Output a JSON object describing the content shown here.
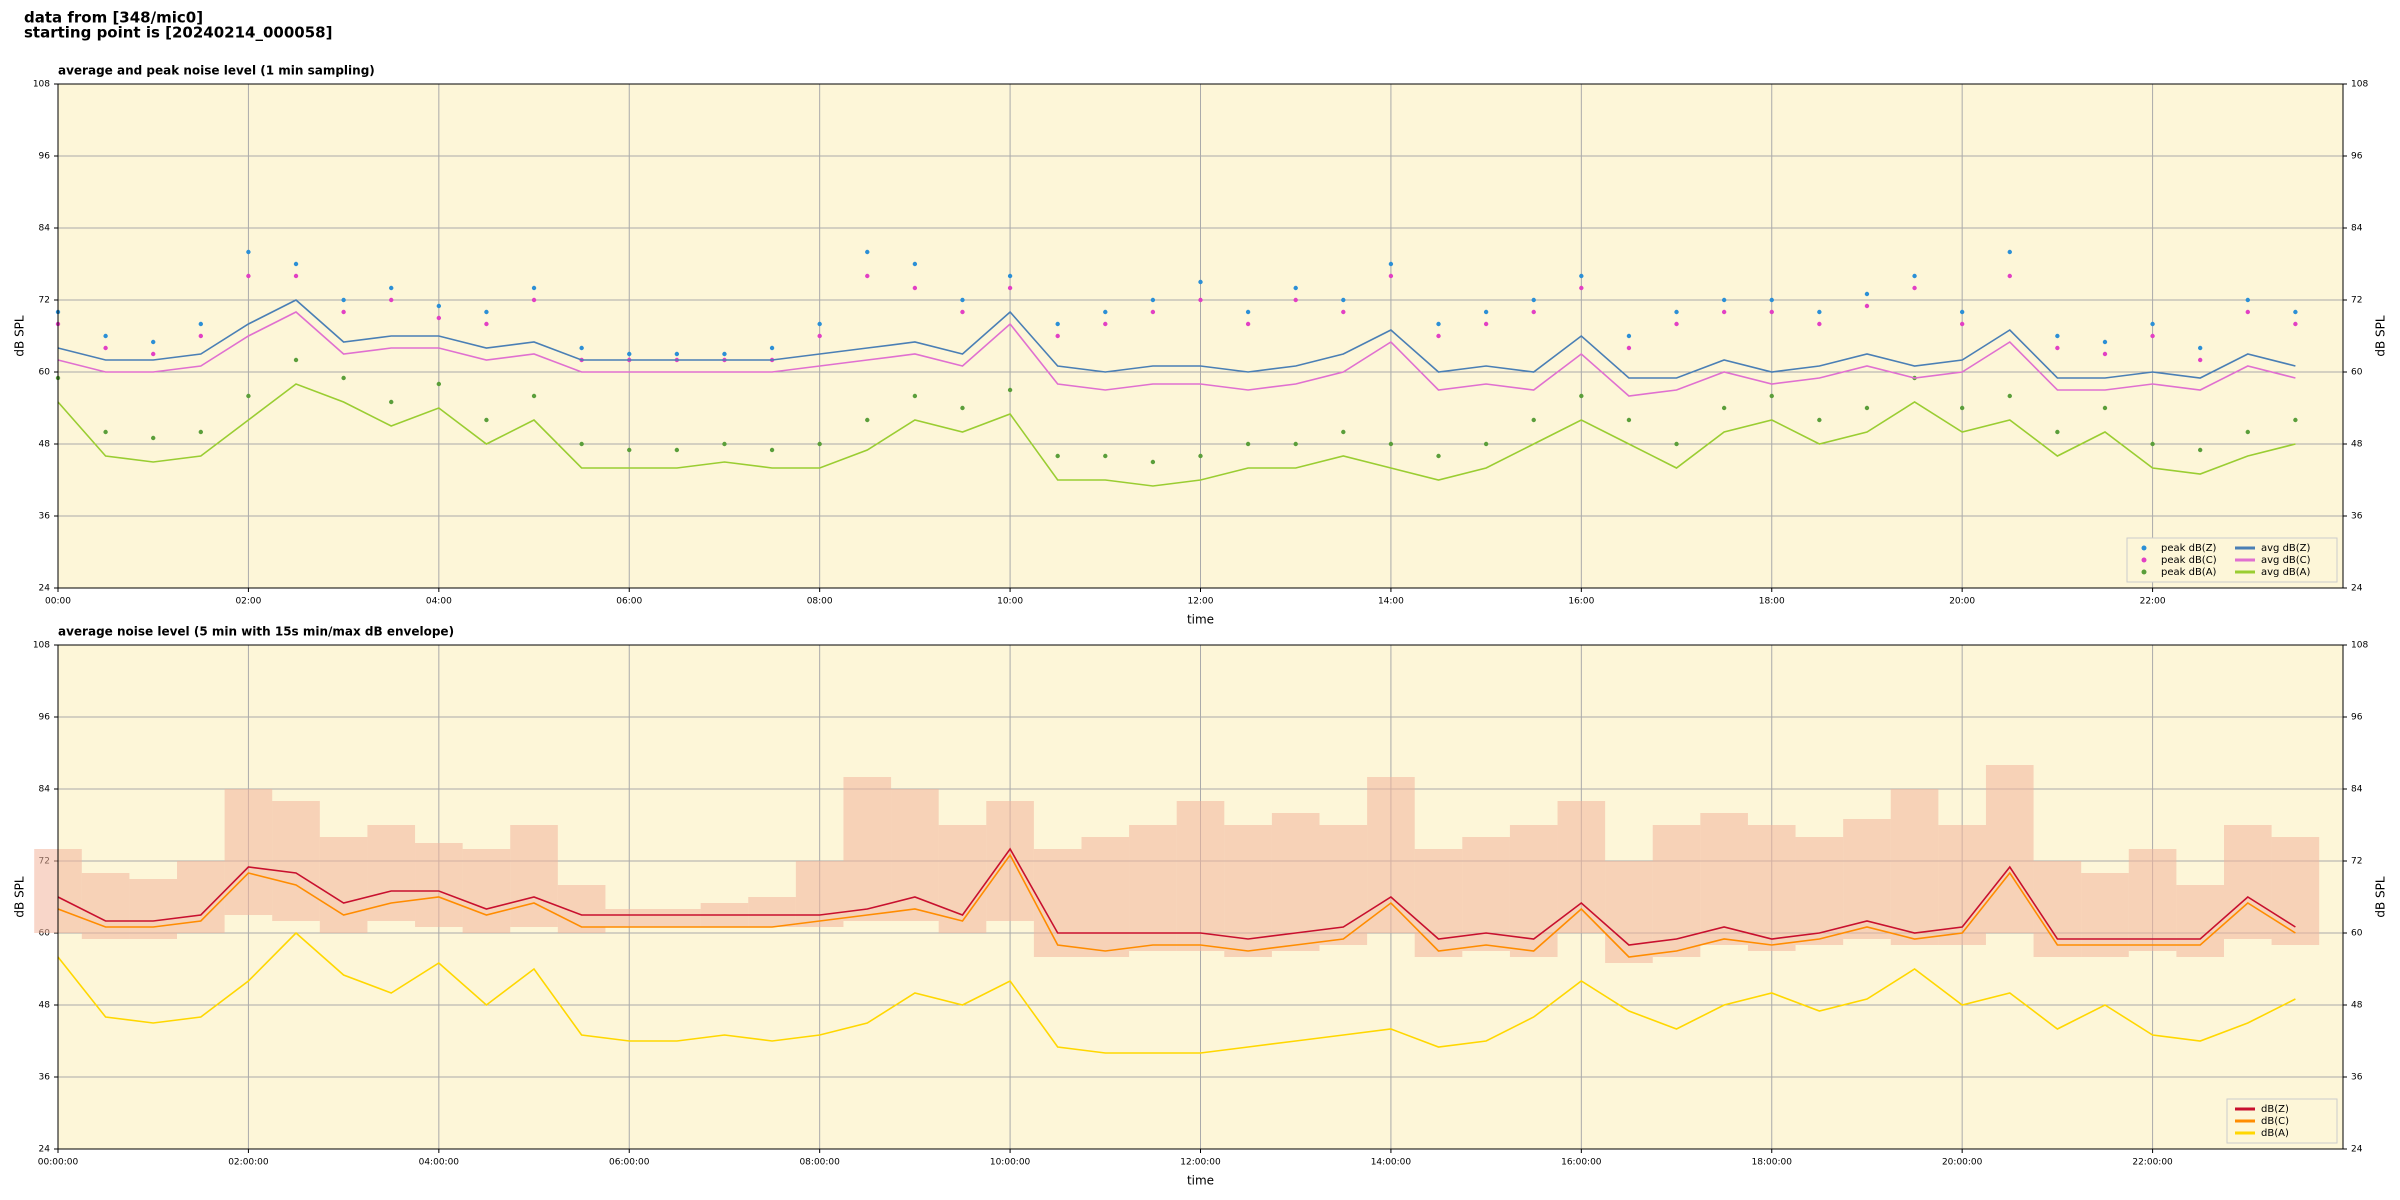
{
  "header": {
    "line1": "data from [348/mic0]",
    "line2": "starting point is [20240214_000058]"
  },
  "chart_data": [
    {
      "type": "line",
      "title": "average and peak noise level (1 min sampling)",
      "xlabel": "time",
      "ylabel": "dB SPL",
      "x": [
        0,
        0.5,
        1,
        1.5,
        2,
        2.5,
        3,
        3.5,
        4,
        4.5,
        5,
        5.5,
        6,
        6.5,
        7,
        7.5,
        8,
        8.5,
        9,
        9.5,
        10,
        10.5,
        11,
        11.5,
        12,
        12.5,
        13,
        13.5,
        14,
        14.5,
        15,
        15.5,
        16,
        16.5,
        17,
        17.5,
        18,
        18.5,
        19,
        19.5,
        20,
        20.5,
        21,
        21.5,
        22,
        22.5,
        23,
        23.5
      ],
      "xlim": [
        0,
        24
      ],
      "xticks": [
        {
          "value": 0,
          "label": "00:00"
        },
        {
          "value": 2,
          "label": "02:00"
        },
        {
          "value": 4,
          "label": "04:00"
        },
        {
          "value": 6,
          "label": "06:00"
        },
        {
          "value": 8,
          "label": "08:00"
        },
        {
          "value": 10,
          "label": "10:00"
        },
        {
          "value": 12,
          "label": "12:00"
        },
        {
          "value": 14,
          "label": "14:00"
        },
        {
          "value": 16,
          "label": "16:00"
        },
        {
          "value": 18,
          "label": "18:00"
        },
        {
          "value": 20,
          "label": "20:00"
        },
        {
          "value": 22,
          "label": "22:00"
        }
      ],
      "ylim": [
        24,
        108
      ],
      "yticks": [
        24,
        36,
        48,
        60,
        72,
        84,
        96,
        108
      ],
      "grid": true,
      "legend": "lower right",
      "legend_columns": 2,
      "series": [
        {
          "name": "peak dB(Z)",
          "kind": "points",
          "color": "#2b8fd6",
          "values": [
            70,
            66,
            65,
            68,
            80,
            78,
            72,
            74,
            71,
            70,
            74,
            64,
            63,
            63,
            63,
            64,
            68,
            80,
            78,
            72,
            76,
            68,
            70,
            72,
            75,
            70,
            74,
            72,
            78,
            68,
            70,
            72,
            76,
            66,
            70,
            72,
            72,
            70,
            73,
            76,
            70,
            80,
            66,
            65,
            68,
            64,
            72,
            70
          ]
        },
        {
          "name": "peak dB(C)",
          "kind": "points",
          "color": "#e23fc4",
          "values": [
            68,
            64,
            63,
            66,
            76,
            76,
            70,
            72,
            69,
            68,
            72,
            62,
            62,
            62,
            62,
            62,
            66,
            76,
            74,
            70,
            74,
            66,
            68,
            70,
            72,
            68,
            72,
            70,
            76,
            66,
            68,
            70,
            74,
            64,
            68,
            70,
            70,
            68,
            71,
            74,
            68,
            76,
            64,
            63,
            66,
            62,
            70,
            68
          ]
        },
        {
          "name": "peak dB(A)",
          "kind": "points",
          "color": "#5a9e3a",
          "values": [
            59,
            50,
            49,
            50,
            56,
            62,
            59,
            55,
            58,
            52,
            56,
            48,
            47,
            47,
            48,
            47,
            48,
            52,
            56,
            54,
            57,
            46,
            46,
            45,
            46,
            48,
            48,
            50,
            48,
            46,
            48,
            52,
            56,
            52,
            48,
            54,
            56,
            52,
            54,
            59,
            54,
            56,
            50,
            54,
            48,
            47,
            50,
            52
          ]
        },
        {
          "name": "avg dB(Z)",
          "kind": "line",
          "color": "#4a7fb5",
          "values": [
            64,
            62,
            62,
            63,
            68,
            72,
            65,
            66,
            66,
            64,
            65,
            62,
            62,
            62,
            62,
            62,
            63,
            64,
            65,
            63,
            70,
            61,
            60,
            61,
            61,
            60,
            61,
            63,
            67,
            60,
            61,
            60,
            66,
            59,
            59,
            62,
            60,
            61,
            63,
            61,
            62,
            67,
            59,
            59,
            60,
            59,
            63,
            61
          ]
        },
        {
          "name": "avg dB(C)",
          "kind": "line",
          "color": "#e070d0",
          "values": [
            62,
            60,
            60,
            61,
            66,
            70,
            63,
            64,
            64,
            62,
            63,
            60,
            60,
            60,
            60,
            60,
            61,
            62,
            63,
            61,
            68,
            58,
            57,
            58,
            58,
            57,
            58,
            60,
            65,
            57,
            58,
            57,
            63,
            56,
            57,
            60,
            58,
            59,
            61,
            59,
            60,
            65,
            57,
            57,
            58,
            57,
            61,
            59
          ]
        },
        {
          "name": "avg dB(A)",
          "kind": "line",
          "color": "#9acd32",
          "values": [
            55,
            46,
            45,
            46,
            52,
            58,
            55,
            51,
            54,
            48,
            52,
            44,
            44,
            44,
            45,
            44,
            44,
            47,
            52,
            50,
            53,
            42,
            42,
            41,
            42,
            44,
            44,
            46,
            44,
            42,
            44,
            48,
            52,
            48,
            44,
            50,
            52,
            48,
            50,
            55,
            50,
            52,
            46,
            50,
            44,
            43,
            46,
            48
          ]
        }
      ]
    },
    {
      "type": "line",
      "title": "average noise level (5 min with 15s min/max dB envelope)",
      "xlabel": "time",
      "ylabel": "dB SPL",
      "x": [
        0,
        0.5,
        1,
        1.5,
        2,
        2.5,
        3,
        3.5,
        4,
        4.5,
        5,
        5.5,
        6,
        6.5,
        7,
        7.5,
        8,
        8.5,
        9,
        9.5,
        10,
        10.5,
        11,
        11.5,
        12,
        12.5,
        13,
        13.5,
        14,
        14.5,
        15,
        15.5,
        16,
        16.5,
        17,
        17.5,
        18,
        18.5,
        19,
        19.5,
        20,
        20.5,
        21,
        21.5,
        22,
        22.5,
        23,
        23.5
      ],
      "xlim": [
        0,
        24
      ],
      "xticks": [
        {
          "value": 0,
          "label": "00:00:00"
        },
        {
          "value": 2,
          "label": "02:00:00"
        },
        {
          "value": 4,
          "label": "04:00:00"
        },
        {
          "value": 6,
          "label": "06:00:00"
        },
        {
          "value": 8,
          "label": "08:00:00"
        },
        {
          "value": 10,
          "label": "10:00:00"
        },
        {
          "value": 12,
          "label": "12:00:00"
        },
        {
          "value": 14,
          "label": "14:00:00"
        },
        {
          "value": 16,
          "label": "16:00:00"
        },
        {
          "value": 18,
          "label": "18:00:00"
        },
        {
          "value": 20,
          "label": "20:00:00"
        },
        {
          "value": 22,
          "label": "22:00:00"
        }
      ],
      "ylim": [
        24,
        108
      ],
      "yticks": [
        24,
        36,
        48,
        60,
        72,
        84,
        96,
        108
      ],
      "grid": true,
      "legend": "lower right",
      "legend_columns": 1,
      "envelope": {
        "color": "#f2b49c",
        "lower": [
          60,
          59,
          59,
          60,
          63,
          62,
          60,
          62,
          61,
          60,
          61,
          60,
          61,
          61,
          61,
          61,
          61,
          62,
          62,
          60,
          62,
          56,
          56,
          57,
          57,
          56,
          57,
          58,
          60,
          56,
          57,
          56,
          60,
          55,
          56,
          58,
          57,
          58,
          59,
          58,
          58,
          60,
          56,
          56,
          57,
          56,
          59,
          58
        ],
        "upper": [
          74,
          70,
          69,
          72,
          84,
          82,
          76,
          78,
          75,
          74,
          78,
          68,
          64,
          64,
          65,
          66,
          72,
          86,
          84,
          78,
          82,
          74,
          76,
          78,
          82,
          78,
          80,
          78,
          86,
          74,
          76,
          78,
          82,
          72,
          78,
          80,
          78,
          76,
          79,
          84,
          78,
          88,
          72,
          70,
          74,
          68,
          78,
          76
        ]
      },
      "series": [
        {
          "name": "dB(Z)",
          "kind": "line",
          "color": "#c8102e",
          "values": [
            66,
            62,
            62,
            63,
            71,
            70,
            65,
            67,
            67,
            64,
            66,
            63,
            63,
            63,
            63,
            63,
            63,
            64,
            66,
            63,
            74,
            60,
            60,
            60,
            60,
            59,
            60,
            61,
            66,
            59,
            60,
            59,
            65,
            58,
            59,
            61,
            59,
            60,
            62,
            60,
            61,
            71,
            59,
            59,
            59,
            59,
            66,
            61
          ]
        },
        {
          "name": "dB(C)",
          "kind": "line",
          "color": "#ff8c00",
          "values": [
            64,
            61,
            61,
            62,
            70,
            68,
            63,
            65,
            66,
            63,
            65,
            61,
            61,
            61,
            61,
            61,
            62,
            63,
            64,
            62,
            73,
            58,
            57,
            58,
            58,
            57,
            58,
            59,
            65,
            57,
            58,
            57,
            64,
            56,
            57,
            59,
            58,
            59,
            61,
            59,
            60,
            70,
            58,
            58,
            58,
            58,
            65,
            60
          ]
        },
        {
          "name": "dB(A)",
          "kind": "line",
          "color": "#ffd700",
          "values": [
            56,
            46,
            45,
            46,
            52,
            60,
            53,
            50,
            55,
            48,
            54,
            43,
            42,
            42,
            43,
            42,
            43,
            45,
            50,
            48,
            52,
            41,
            40,
            40,
            40,
            41,
            42,
            43,
            44,
            41,
            42,
            46,
            52,
            47,
            44,
            48,
            50,
            47,
            49,
            54,
            48,
            50,
            44,
            48,
            43,
            42,
            45,
            49
          ]
        }
      ]
    }
  ]
}
